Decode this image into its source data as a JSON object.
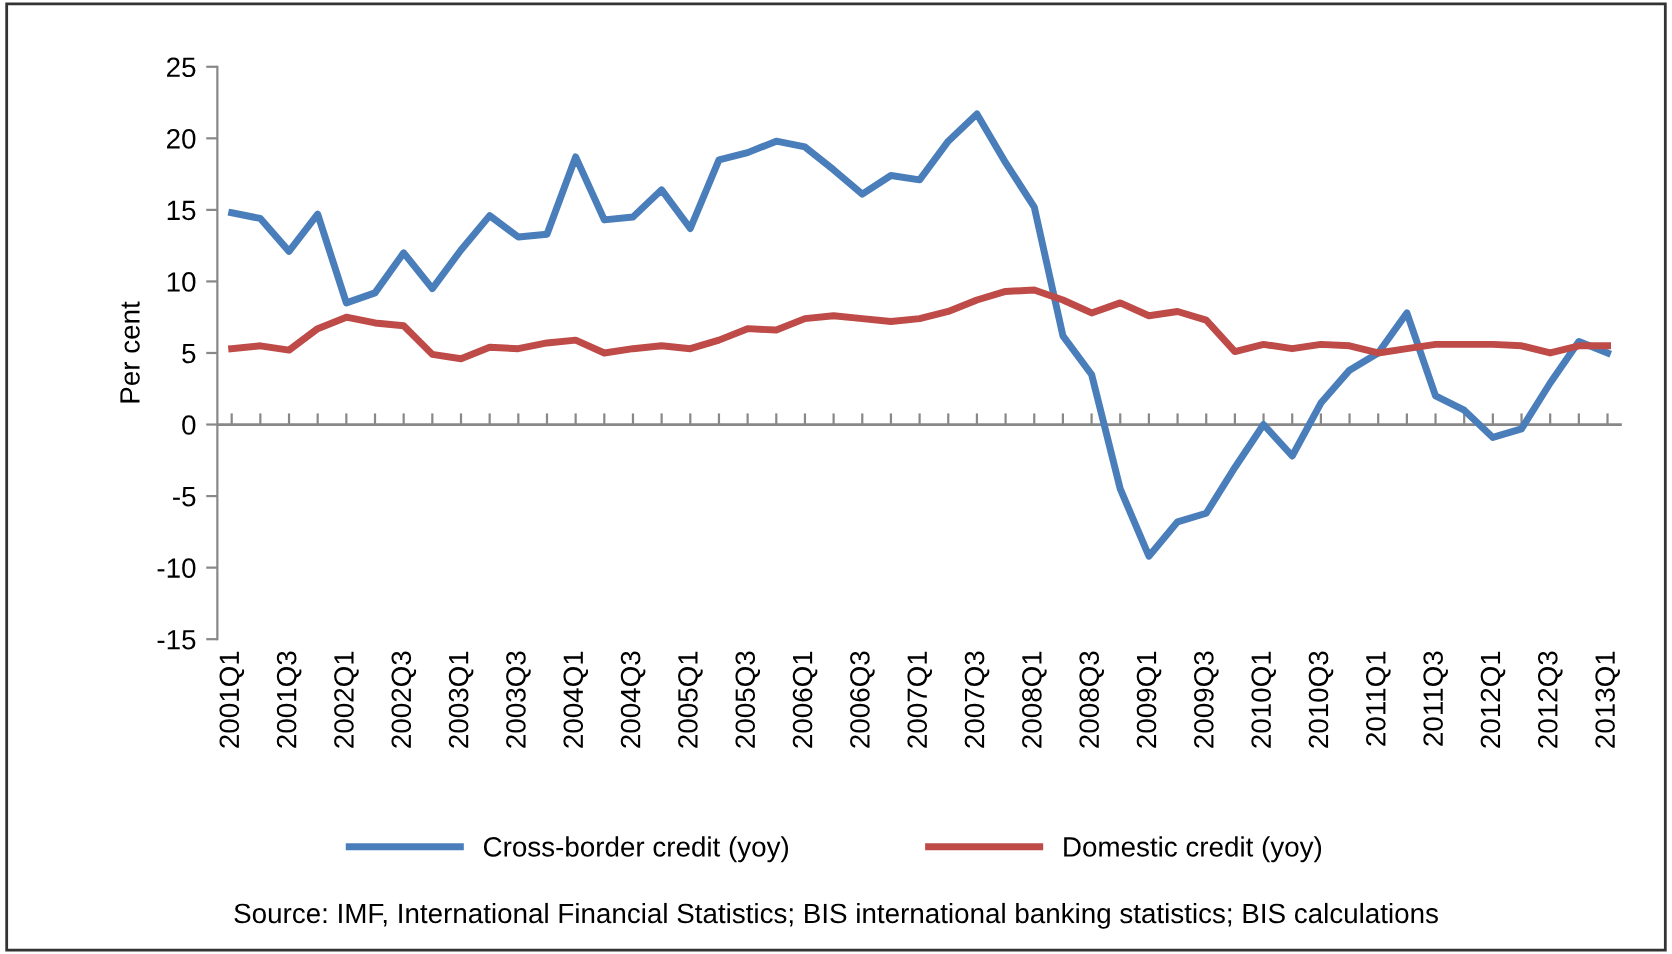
{
  "chart_data": {
    "type": "line",
    "categories": [
      "2001Q1",
      null,
      "2001Q3",
      null,
      "2002Q1",
      null,
      "2002Q3",
      null,
      "2003Q1",
      null,
      "2003Q3",
      null,
      "2004Q1",
      null,
      "2004Q3",
      null,
      "2005Q1",
      null,
      "2005Q3",
      null,
      "2006Q1",
      null,
      "2006Q3",
      null,
      "2007Q1",
      null,
      "2007Q3",
      null,
      "2008Q1",
      null,
      "2008Q3",
      null,
      "2009Q1",
      null,
      "2009Q3",
      null,
      "2010Q1",
      null,
      "2010Q3",
      null,
      "2011Q1",
      null,
      "2011Q3",
      null,
      "2012Q1",
      null,
      "2012Q3",
      null,
      "2013Q1"
    ],
    "series": [
      {
        "name": "Cross-border credit (yoy)",
        "color": "#4a7ebb",
        "values": [
          14.8,
          14.4,
          12.1,
          14.7,
          8.5,
          9.2,
          12.0,
          9.5,
          12.2,
          14.6,
          13.1,
          13.3,
          18.7,
          14.3,
          14.5,
          16.4,
          13.7,
          18.5,
          19.0,
          19.8,
          19.4,
          17.8,
          16.1,
          17.4,
          17.1,
          19.8,
          21.7,
          18.3,
          15.2,
          6.2,
          3.5,
          -4.5,
          -9.2,
          -6.8,
          -6.2,
          -3.0,
          0.0,
          -2.2,
          1.5,
          3.8,
          5.0,
          7.8,
          2.0,
          1.0,
          -0.9,
          -0.3,
          2.9,
          5.8,
          5.0
        ]
      },
      {
        "name": "Domestic credit (yoy)",
        "color": "#be4b48",
        "values": [
          5.3,
          5.5,
          5.2,
          6.7,
          7.5,
          7.1,
          6.9,
          4.9,
          4.6,
          5.4,
          5.3,
          5.7,
          5.9,
          5.0,
          5.3,
          5.5,
          5.3,
          5.9,
          6.7,
          6.6,
          7.4,
          7.6,
          7.4,
          7.2,
          7.4,
          7.9,
          8.7,
          9.3,
          9.4,
          8.7,
          7.8,
          8.5,
          7.6,
          7.9,
          7.3,
          5.1,
          5.6,
          5.3,
          5.6,
          5.5,
          5.0,
          5.3,
          5.6,
          5.6,
          5.6,
          5.5,
          5.0,
          5.5,
          5.5
        ]
      }
    ],
    "ylabel": "Per cent",
    "ylim": [
      -15,
      25
    ],
    "yticks": [
      -15,
      -10,
      -5,
      0,
      5,
      10,
      15,
      20,
      25
    ],
    "grid": false,
    "ref_lines": [
      {
        "axis": "y",
        "value": 0,
        "color": "#888888",
        "line_style": "solid"
      }
    ],
    "legend": "bottom",
    "marker": "none",
    "line_style": "solid",
    "annotations": [
      "Source: IMF, International Financial Statistics; BIS international banking statistics; BIS calculations"
    ]
  }
}
